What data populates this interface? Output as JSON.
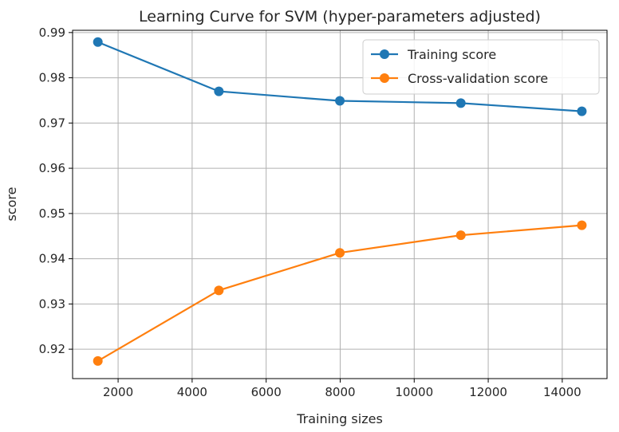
{
  "chart_data": {
    "type": "line",
    "title": "Learning Curve for SVM (hyper-parameters adjusted)",
    "xlabel": "Training sizes",
    "ylabel": "score",
    "xlim": [
      770,
      15210
    ],
    "ylim": [
      0.9135,
      0.9905
    ],
    "xticks": [
      2000,
      4000,
      6000,
      8000,
      10000,
      12000,
      14000
    ],
    "yticks": [
      0.92,
      0.93,
      0.94,
      0.95,
      0.96,
      0.97,
      0.98,
      0.99
    ],
    "grid": true,
    "legend_position": "top-right",
    "x": [
      1453,
      4722,
      7991,
      11260,
      14529
    ],
    "series": [
      {
        "name": "Training score",
        "color": "#1f77b4",
        "values": [
          0.9879,
          0.977,
          0.9749,
          0.9744,
          0.9726
        ]
      },
      {
        "name": "Cross-validation score",
        "color": "#ff7f0e",
        "values": [
          0.9174,
          0.933,
          0.9413,
          0.9452,
          0.9474
        ]
      }
    ]
  }
}
